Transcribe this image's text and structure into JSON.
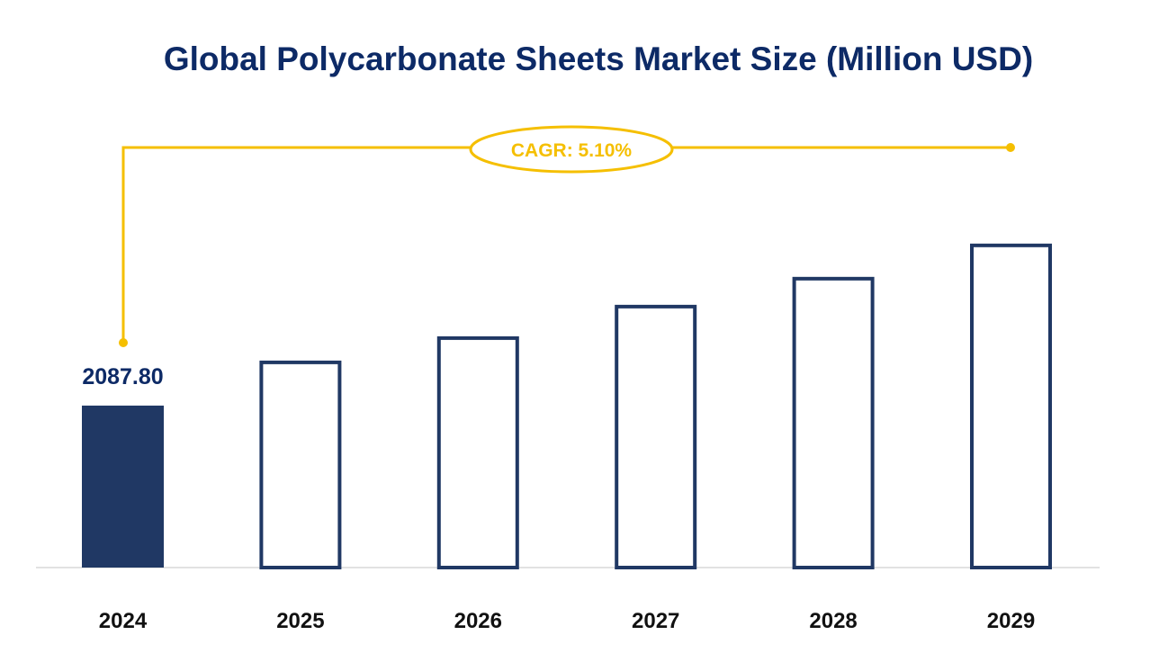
{
  "chart_data": {
    "type": "bar",
    "title": "Global Polycarbonate Sheets Market Size (Million USD)",
    "xlabel": "",
    "ylabel": "",
    "categories": [
      "2024",
      "2025",
      "2026",
      "2027",
      "2028",
      "2029"
    ],
    "values": [
      2087.8,
      2668,
      2981,
      3387,
      3747,
      4176
    ],
    "data_labels": [
      "2087.80",
      null,
      null,
      null,
      null,
      null
    ],
    "ylim": [
      0,
      7316
    ],
    "grid": false,
    "annotation": "CAGR: 5.10%",
    "colors": {
      "filled_bar": "#203864",
      "outline_bar": "#203864",
      "cagr": "#f5bf00",
      "title": "#0d2a66",
      "baseline": "#d9d9d9"
    }
  }
}
